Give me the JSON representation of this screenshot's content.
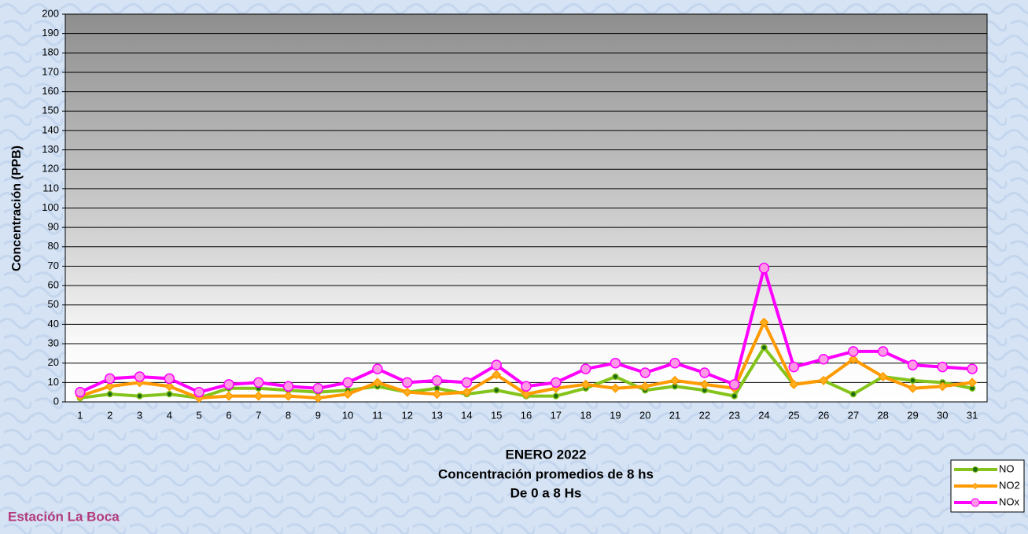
{
  "chart_data": {
    "type": "line",
    "title": "ENERO 2022",
    "subtitle": [
      "Concentración promedios de 8 hs",
      "De 0 a 8 Hs"
    ],
    "annotation": "Estación La Boca",
    "y_label": "Concentración  (PPB)",
    "categories": [
      "1",
      "2",
      "3",
      "4",
      "5",
      "6",
      "7",
      "8",
      "9",
      "10",
      "11",
      "12",
      "13",
      "14",
      "15",
      "16",
      "17",
      "18",
      "19",
      "20",
      "21",
      "22",
      "23",
      "24",
      "25",
      "26",
      "27",
      "28",
      "29",
      "30",
      "31"
    ],
    "series": [
      {
        "name": "NO",
        "color": "#84c41c",
        "marker": "circle",
        "marker_color": "#1f6b12",
        "values": [
          2,
          4,
          3,
          4,
          2,
          7,
          7,
          6,
          5,
          6,
          8,
          5,
          7,
          4,
          6,
          3,
          3,
          7,
          13,
          6,
          8,
          6,
          3,
          28,
          9,
          11,
          4,
          13,
          11,
          10,
          7
        ]
      },
      {
        "name": "NO2",
        "color": "#ff9a00",
        "marker": "diamond",
        "marker_color": "#ffb020",
        "values": [
          3,
          8,
          10,
          8,
          2,
          3,
          3,
          3,
          2,
          4,
          10,
          5,
          4,
          5,
          14,
          4,
          7,
          9,
          7,
          8,
          11,
          9,
          7,
          41,
          9,
          11,
          22,
          13,
          7,
          8,
          10
        ]
      },
      {
        "name": "NOx",
        "color": "#ff00ff",
        "marker": "circle",
        "marker_color": "#ff99e6",
        "values": [
          5,
          12,
          13,
          12,
          5,
          9,
          10,
          8,
          7,
          10,
          17,
          10,
          11,
          10,
          19,
          8,
          10,
          17,
          20,
          15,
          20,
          15,
          9,
          69,
          18,
          22,
          26,
          26,
          19,
          18,
          17
        ]
      }
    ],
    "ylim": [
      0,
      200
    ],
    "yticks": [
      0,
      10,
      20,
      30,
      40,
      50,
      60,
      70,
      80,
      90,
      100,
      110,
      120,
      130,
      140,
      150,
      160,
      170,
      180,
      190,
      200
    ],
    "grid": true,
    "legend": "bottom-right"
  }
}
